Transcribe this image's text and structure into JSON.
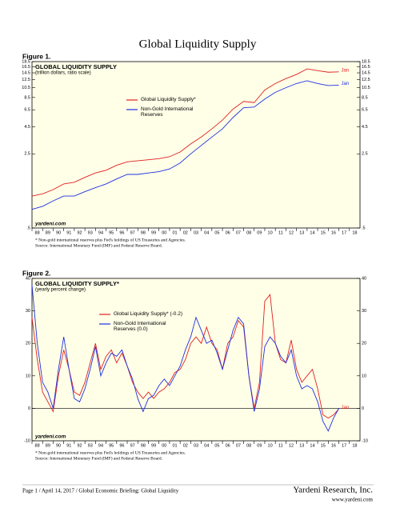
{
  "title": "Global Liquidity Supply",
  "chart_data": [
    {
      "type": "line",
      "figure_label": "Figure 1.",
      "title": "GLOBAL LIQUIDITY SUPPLY",
      "subtitle": "(trillion dollars, ratio scale)",
      "watermark": "yardeni.com",
      "footnotes": [
        "*  Non-gold international reserves plus Fed's holdings of US Treasuries and Agencies.",
        "Source: International Monetary Fund (IMF) and Federal Reserve Board."
      ],
      "log_scale": true,
      "x": [
        1988,
        1989,
        1990,
        1991,
        1992,
        1993,
        1994,
        1995,
        1996,
        1997,
        1998,
        1999,
        2000,
        2001,
        2002,
        2003,
        2004,
        2005,
        2006,
        2007,
        2008,
        2009,
        2010,
        2011,
        2012,
        2013,
        2014,
        2015,
        2016,
        2017
      ],
      "series": [
        {
          "name": "Global Liquidity Supply*",
          "color": "#e02020",
          "end_label": "Jan",
          "values": [
            1.0,
            1.05,
            1.15,
            1.3,
            1.35,
            1.5,
            1.65,
            1.75,
            1.95,
            2.1,
            2.15,
            2.2,
            2.25,
            2.35,
            2.6,
            3.1,
            3.6,
            4.3,
            5.2,
            6.6,
            7.8,
            7.6,
            10.0,
            11.5,
            12.8,
            14.0,
            15.8,
            15.2,
            14.7,
            14.8
          ]
        },
        {
          "name": "Non-Gold International Reserves",
          "color": "#2030e0",
          "end_label": "Jan",
          "values": [
            0.75,
            0.8,
            0.9,
            1.0,
            1.0,
            1.1,
            1.2,
            1.3,
            1.45,
            1.6,
            1.6,
            1.65,
            1.7,
            1.8,
            2.05,
            2.5,
            3.0,
            3.6,
            4.3,
            5.5,
            6.8,
            6.9,
            8.2,
            9.5,
            10.5,
            11.5,
            12.2,
            11.5,
            11.0,
            11.1
          ]
        }
      ],
      "xlim": [
        1988,
        2019
      ],
      "xticks": [
        {
          "value": 1988,
          "label": "88"
        },
        {
          "value": 1989,
          "label": "89"
        },
        {
          "value": 1990,
          "label": "90"
        },
        {
          "value": 1991,
          "label": "91"
        },
        {
          "value": 1992,
          "label": "92"
        },
        {
          "value": 1993,
          "label": "93"
        },
        {
          "value": 1994,
          "label": "94"
        },
        {
          "value": 1995,
          "label": "95"
        },
        {
          "value": 1996,
          "label": "96"
        },
        {
          "value": 1997,
          "label": "97"
        },
        {
          "value": 1998,
          "label": "98"
        },
        {
          "value": 1999,
          "label": "99"
        },
        {
          "value": 2000,
          "label": "00"
        },
        {
          "value": 2001,
          "label": "01"
        },
        {
          "value": 2002,
          "label": "02"
        },
        {
          "value": 2003,
          "label": "03"
        },
        {
          "value": 2004,
          "label": "04"
        },
        {
          "value": 2005,
          "label": "05"
        },
        {
          "value": 2006,
          "label": "06"
        },
        {
          "value": 2007,
          "label": "07"
        },
        {
          "value": 2008,
          "label": "08"
        },
        {
          "value": 2009,
          "label": "09"
        },
        {
          "value": 2010,
          "label": "10"
        },
        {
          "value": 2011,
          "label": "11"
        },
        {
          "value": 2012,
          "label": "12"
        },
        {
          "value": 2013,
          "label": "13"
        },
        {
          "value": 2014,
          "label": "14"
        },
        {
          "value": 2015,
          "label": "15"
        },
        {
          "value": 2016,
          "label": "16"
        },
        {
          "value": 2017,
          "label": "17"
        },
        {
          "value": 2018,
          "label": "18"
        }
      ],
      "ylim": [
        0.5,
        18.5
      ],
      "yticks": [
        18.5,
        16.5,
        14.5,
        12.5,
        10.5,
        8.5,
        6.5,
        4.5,
        2.5,
        {
          "value": 0.5,
          "label": ".5"
        }
      ]
    },
    {
      "type": "line",
      "figure_label": "Figure 2.",
      "title": "GLOBAL LIQUIDITY SUPPLY*",
      "subtitle": "(yearly percent change)",
      "watermark": "yardeni.com",
      "footnotes": [
        "*  Non-gold international reserves plus Fed's holdings of US Treasuries and Agencies.",
        "Source: International Monetary Fund (IMF) and Federal Reserve Board."
      ],
      "log_scale": false,
      "x": [
        1988,
        1988.5,
        1989,
        1989.5,
        1990,
        1990.5,
        1991,
        1991.5,
        1992,
        1992.5,
        1993,
        1993.5,
        1994,
        1994.5,
        1995,
        1995.5,
        1996,
        1996.5,
        1997,
        1997.5,
        1998,
        1998.5,
        1999,
        1999.5,
        2000,
        2000.5,
        2001,
        2001.5,
        2002,
        2002.5,
        2003,
        2003.5,
        2004,
        2004.5,
        2005,
        2005.5,
        2006,
        2006.5,
        2007,
        2007.5,
        2008,
        2008.5,
        2009,
        2009.5,
        2010,
        2010.5,
        2011,
        2011.5,
        2012,
        2012.5,
        2013,
        2013.5,
        2014,
        2014.5,
        2015,
        2015.5,
        2016,
        2016.5,
        2017
      ],
      "series": [
        {
          "name": "Global Liquidity Supply* (-0.2)",
          "color": "#e02020",
          "end_label": "Jan",
          "values": [
            28,
            15,
            5,
            2,
            -1,
            10,
            18,
            12,
            5,
            4,
            8,
            14,
            20,
            12,
            16,
            18,
            14,
            17,
            13,
            8,
            5,
            3,
            5,
            3,
            5,
            6,
            8,
            11,
            12,
            15,
            20,
            22,
            20,
            25,
            20,
            18,
            12,
            20,
            22,
            27,
            25,
            10,
            0,
            8,
            33,
            35,
            20,
            15,
            14,
            21,
            12,
            8,
            10,
            12,
            6,
            -2,
            -3,
            -2,
            -0.2
          ]
        },
        {
          "name": "Non-Gold International Reserves (0.0)",
          "color": "#2030e0",
          "values": [
            38,
            20,
            8,
            5,
            0,
            12,
            22,
            12,
            3,
            2,
            6,
            12,
            19,
            10,
            14,
            17,
            16,
            18,
            13,
            9,
            3,
            -1,
            3,
            4,
            7,
            9,
            7,
            10,
            13,
            18,
            22,
            28,
            24,
            20,
            21,
            17,
            12,
            18,
            24,
            28,
            26,
            10,
            -1,
            6,
            19,
            22,
            20,
            16,
            14,
            18,
            10,
            6,
            7,
            6,
            2,
            -4,
            -7,
            -3,
            0
          ]
        }
      ],
      "xlim": [
        1988,
        2019
      ],
      "xticks": [
        {
          "value": 1988,
          "label": "88"
        },
        {
          "value": 1989,
          "label": "89"
        },
        {
          "value": 1990,
          "label": "90"
        },
        {
          "value": 1991,
          "label": "91"
        },
        {
          "value": 1992,
          "label": "92"
        },
        {
          "value": 1993,
          "label": "93"
        },
        {
          "value": 1994,
          "label": "94"
        },
        {
          "value": 1995,
          "label": "95"
        },
        {
          "value": 1996,
          "label": "96"
        },
        {
          "value": 1997,
          "label": "97"
        },
        {
          "value": 1998,
          "label": "98"
        },
        {
          "value": 1999,
          "label": "99"
        },
        {
          "value": 2000,
          "label": "00"
        },
        {
          "value": 2001,
          "label": "01"
        },
        {
          "value": 2002,
          "label": "02"
        },
        {
          "value": 2003,
          "label": "03"
        },
        {
          "value": 2004,
          "label": "04"
        },
        {
          "value": 2005,
          "label": "05"
        },
        {
          "value": 2006,
          "label": "06"
        },
        {
          "value": 2007,
          "label": "07"
        },
        {
          "value": 2008,
          "label": "08"
        },
        {
          "value": 2009,
          "label": "09"
        },
        {
          "value": 2010,
          "label": "10"
        },
        {
          "value": 2011,
          "label": "11"
        },
        {
          "value": 2012,
          "label": "12"
        },
        {
          "value": 2013,
          "label": "13"
        },
        {
          "value": 2014,
          "label": "14"
        },
        {
          "value": 2015,
          "label": "15"
        },
        {
          "value": 2016,
          "label": "16"
        },
        {
          "value": 2017,
          "label": "17"
        },
        {
          "value": 2018,
          "label": "18"
        }
      ],
      "ylim": [
        -10,
        40
      ],
      "yticks": [
        40,
        30,
        20,
        10,
        0,
        -10
      ]
    }
  ],
  "footer": {
    "page": "Page 1 / April 14, 2017 / Global Economic Briefing: Global Liquidity",
    "company": "Yardeni Research, Inc.",
    "website": "www.yardeni.com"
  }
}
